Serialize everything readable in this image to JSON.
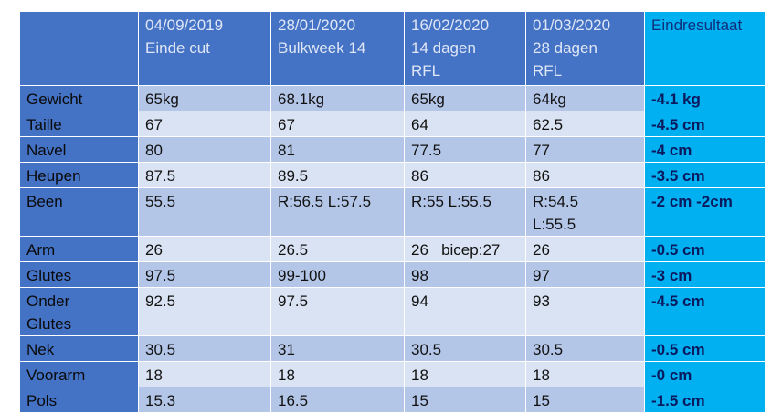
{
  "table": {
    "headers": [
      {
        "line1": "",
        "line2": "",
        "line3": ""
      },
      {
        "line1": "04/09/2019",
        "line2": "Einde cut",
        "line3": ""
      },
      {
        "line1": "28/01/2020",
        "line2": "Bulkweek 14",
        "line3": ""
      },
      {
        "line1": "16/02/2020",
        "line2": "14 dagen",
        "line3": "RFL"
      },
      {
        "line1": "01/03/2020",
        "line2": "28 dagen",
        "line3": "RFL"
      },
      {
        "line1": "Eindresultaat",
        "line2": "",
        "line3": ""
      }
    ],
    "rows": [
      {
        "label": "Gewicht",
        "label2": "",
        "c1": "65kg",
        "c2": "68.1kg",
        "c3": "65kg",
        "c4": "64kg",
        "c4b": "",
        "result": "-4.1 kg"
      },
      {
        "label": "Taille",
        "label2": "",
        "c1": "67",
        "c2": "67",
        "c3": "64",
        "c4": "62.5",
        "c4b": "",
        "result": "-4.5 cm"
      },
      {
        "label": "Navel",
        "label2": "",
        "c1": "80",
        "c2": "81",
        "c3": "77.5",
        "c4": "77",
        "c4b": "",
        "result": "-4 cm"
      },
      {
        "label": "Heupen",
        "label2": "",
        "c1": "87.5",
        "c2": "89.5",
        "c3": "86",
        "c4": "86",
        "c4b": "",
        "result": "-3.5 cm"
      },
      {
        "label": "Been",
        "label2": "",
        "c1": "55.5",
        "c2": "R:56.5 L:57.5",
        "c3": "R:55 L:55.5",
        "c4": "R:54.5",
        "c4b": "L:55.5",
        "result": "-2 cm  -2cm"
      },
      {
        "label": "Arm",
        "label2": "",
        "c1": "26",
        "c2": "26.5",
        "c3": "26   bicep:27",
        "c4": "26",
        "c4b": "",
        "result": "-0.5 cm"
      },
      {
        "label": "Glutes",
        "label2": "",
        "c1": "97.5",
        "c2": "99-100",
        "c3": "98",
        "c4": "97",
        "c4b": "",
        "result": "-3 cm"
      },
      {
        "label": "Onder",
        "label2": "Glutes",
        "c1": "92.5",
        "c2": "97.5",
        "c3": "94",
        "c4": "93",
        "c4b": "",
        "result": "-4.5 cm"
      },
      {
        "label": "Nek",
        "label2": "",
        "c1": "30.5",
        "c2": "31",
        "c3": "30.5",
        "c4": "30.5",
        "c4b": "",
        "result": "-0.5 cm"
      },
      {
        "label": "Voorarm",
        "label2": "",
        "c1": "18",
        "c2": "18",
        "c3": "18",
        "c4": "18",
        "c4b": "",
        "result": "-0 cm"
      },
      {
        "label": "Pols",
        "label2": "",
        "c1": "15.3",
        "c2": "16.5",
        "c3": "15",
        "c4": "15",
        "c4b": "",
        "result": "-1.5 cm"
      }
    ]
  }
}
